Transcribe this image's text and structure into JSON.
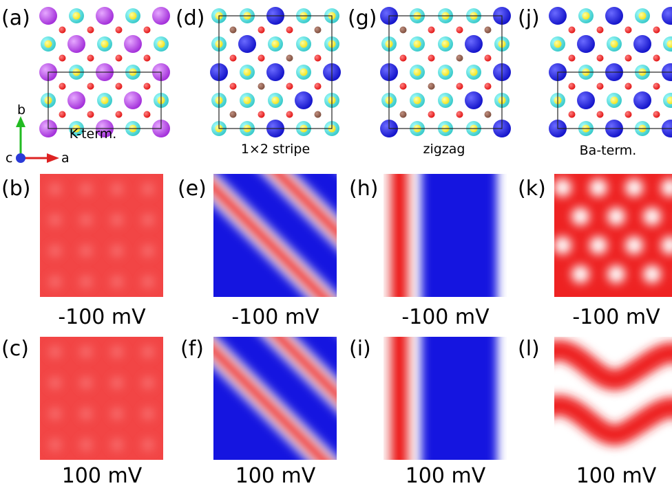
{
  "figure": {
    "panels": [
      {
        "label": "(a)",
        "type": "structure",
        "pattern": "K",
        "caption": "K-term."
      },
      {
        "label": "(d)",
        "type": "structure",
        "pattern": "stripe",
        "caption": "1×2 stripe"
      },
      {
        "label": "(g)",
        "type": "structure",
        "pattern": "zigzag",
        "caption": "zigzag"
      },
      {
        "label": "(j)",
        "type": "structure",
        "pattern": "Ba",
        "caption": "Ba-term."
      },
      {
        "label": "(b)",
        "type": "map",
        "style": "uniform-red",
        "caption": "-100 mV"
      },
      {
        "label": "(e)",
        "type": "map",
        "style": "diagonal",
        "caption": "-100 mV"
      },
      {
        "label": "(h)",
        "type": "map",
        "style": "vertical",
        "caption": "-100 mV"
      },
      {
        "label": "(k)",
        "type": "map",
        "style": "spots",
        "caption": "-100 mV"
      },
      {
        "label": "(c)",
        "type": "map",
        "style": "uniform-red",
        "caption": "100 mV"
      },
      {
        "label": "(f)",
        "type": "map",
        "style": "diagonal",
        "caption": "100 mV"
      },
      {
        "label": "(i)",
        "type": "map",
        "style": "vertical",
        "caption": "100 mV"
      },
      {
        "label": "(l)",
        "type": "map",
        "style": "wave",
        "caption": "100 mV"
      }
    ],
    "axes": {
      "a": "a",
      "b": "b",
      "c": "c"
    },
    "colors": {
      "K": "#a02ad8",
      "Ba": "#1010c8",
      "Fe_outer": "#35c8c8",
      "Fe_inner": "#f2e21a",
      "As": "#e01010",
      "vacancy": "#7a4a3a",
      "map_red": "#ee2222",
      "map_blue": "#1515e0"
    }
  }
}
